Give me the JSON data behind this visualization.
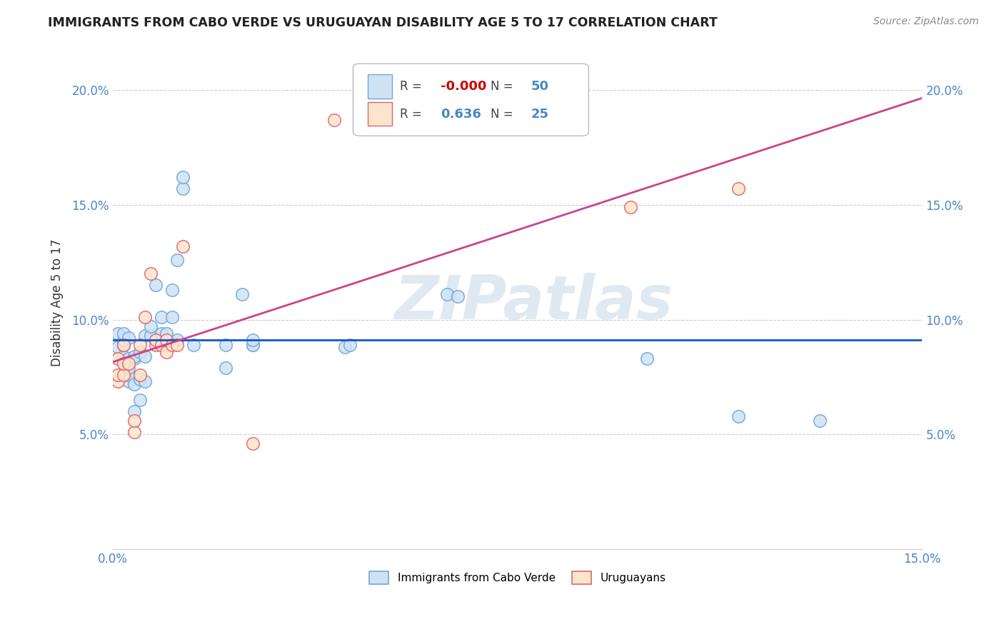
{
  "title": "IMMIGRANTS FROM CABO VERDE VS URUGUAYAN DISABILITY AGE 5 TO 17 CORRELATION CHART",
  "source": "Source: ZipAtlas.com",
  "ylabel": "Disability Age 5 to 17",
  "legend_blue_label": "Immigrants from Cabo Verde",
  "legend_pink_label": "Uruguayans",
  "xlim": [
    0.0,
    0.15
  ],
  "ylim": [
    0.0,
    0.215
  ],
  "y_ticks": [
    0.05,
    0.1,
    0.15,
    0.2
  ],
  "y_tick_labels": [
    "5.0%",
    "10.0%",
    "15.0%",
    "20.0%"
  ],
  "x_ticks": [
    0.0,
    0.15
  ],
  "x_tick_labels": [
    "0.0%",
    "15.0%"
  ],
  "legend_r_blue": "-0.000",
  "legend_n_blue": "50",
  "legend_r_pink": "0.636",
  "legend_n_pink": "25",
  "blue_face_color": "#cfe2f3",
  "blue_edge_color": "#6fa8dc",
  "pink_face_color": "#fce5cd",
  "pink_edge_color": "#e06666",
  "blue_line_color": "#1155cc",
  "pink_line_color": "#cc4488",
  "watermark": "ZIPatlas",
  "blue_x": [
    0.001,
    0.001,
    0.002,
    0.002,
    0.002,
    0.002,
    0.002,
    0.003,
    0.003,
    0.003,
    0.003,
    0.003,
    0.004,
    0.004,
    0.004,
    0.004,
    0.005,
    0.005,
    0.005,
    0.006,
    0.006,
    0.006,
    0.007,
    0.007,
    0.008,
    0.009,
    0.009,
    0.009,
    0.01,
    0.01,
    0.011,
    0.011,
    0.012,
    0.012,
    0.013,
    0.013,
    0.015,
    0.021,
    0.021,
    0.024,
    0.026,
    0.026,
    0.026,
    0.043,
    0.044,
    0.062,
    0.064,
    0.099,
    0.116,
    0.131
  ],
  "blue_y": [
    0.088,
    0.094,
    0.084,
    0.089,
    0.089,
    0.091,
    0.094,
    0.073,
    0.076,
    0.079,
    0.083,
    0.092,
    0.06,
    0.072,
    0.083,
    0.084,
    0.065,
    0.074,
    0.086,
    0.073,
    0.084,
    0.093,
    0.093,
    0.097,
    0.115,
    0.089,
    0.094,
    0.101,
    0.089,
    0.094,
    0.101,
    0.113,
    0.091,
    0.126,
    0.157,
    0.162,
    0.089,
    0.079,
    0.089,
    0.111,
    0.089,
    0.089,
    0.091,
    0.088,
    0.089,
    0.111,
    0.11,
    0.083,
    0.058,
    0.056
  ],
  "pink_x": [
    0.001,
    0.001,
    0.001,
    0.002,
    0.002,
    0.002,
    0.003,
    0.004,
    0.004,
    0.005,
    0.005,
    0.006,
    0.007,
    0.008,
    0.008,
    0.009,
    0.01,
    0.01,
    0.011,
    0.012,
    0.013,
    0.026,
    0.041,
    0.096,
    0.116
  ],
  "pink_y": [
    0.073,
    0.076,
    0.083,
    0.076,
    0.081,
    0.089,
    0.081,
    0.051,
    0.056,
    0.076,
    0.089,
    0.101,
    0.12,
    0.089,
    0.091,
    0.089,
    0.086,
    0.091,
    0.089,
    0.089,
    0.132,
    0.046,
    0.187,
    0.149,
    0.157
  ],
  "background_color": "#ffffff",
  "grid_color": "#cccccc"
}
